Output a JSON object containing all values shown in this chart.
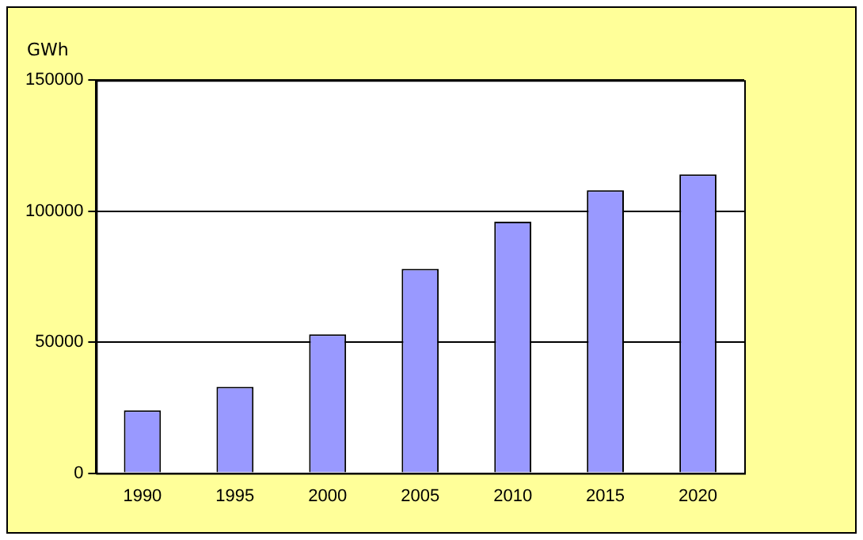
{
  "chart_data": {
    "type": "bar",
    "ylabel": "GWh",
    "categories": [
      "1990",
      "1995",
      "2000",
      "2005",
      "2010",
      "2015",
      "2020"
    ],
    "values": [
      24000,
      33000,
      53000,
      78000,
      96000,
      108000,
      114000
    ],
    "color": "#9999ff",
    "ylim": [
      0,
      150000
    ],
    "yticks": [
      0,
      50000,
      100000,
      150000
    ],
    "grid": "y",
    "legend": false
  }
}
